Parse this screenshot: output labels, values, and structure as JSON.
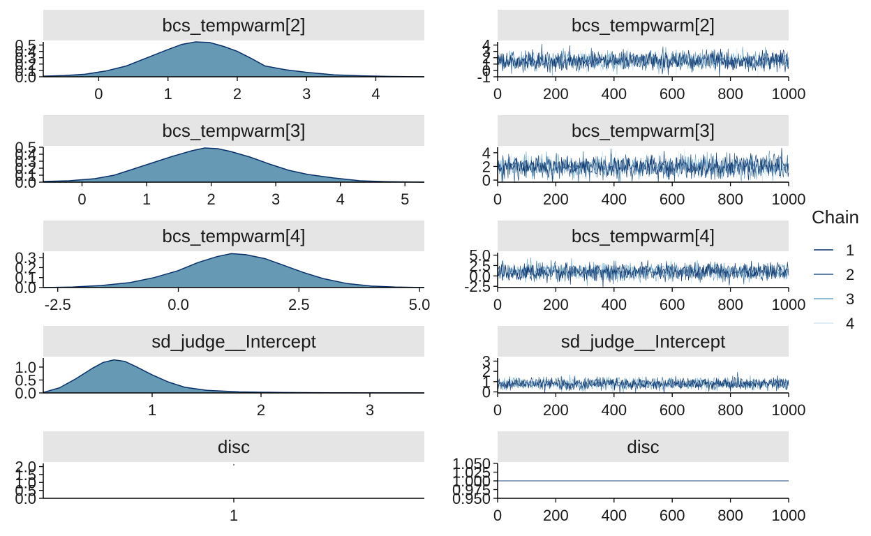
{
  "chart_data": [
    {
      "type": "area",
      "title": "bcs_tempwarm[2]",
      "x_ticks": [
        "0",
        "1",
        "2",
        "3",
        "4"
      ],
      "y_ticks": [
        "0.0",
        "0.1",
        "0.2",
        "0.3",
        "0.4",
        "0.5"
      ],
      "xlim": [
        -0.8,
        4.7
      ],
      "ylim": [
        0,
        0.55
      ],
      "density": {
        "x": [
          -0.8,
          -0.5,
          -0.2,
          0.1,
          0.4,
          0.7,
          1.0,
          1.2,
          1.4,
          1.6,
          1.8,
          2.0,
          2.2,
          2.4,
          2.7,
          3.0,
          3.4,
          3.8,
          4.2,
          4.7
        ],
        "y": [
          0.01,
          0.02,
          0.04,
          0.09,
          0.17,
          0.3,
          0.43,
          0.51,
          0.55,
          0.54,
          0.48,
          0.4,
          0.29,
          0.17,
          0.11,
          0.07,
          0.03,
          0.015,
          0.005,
          0.0
        ]
      }
    },
    {
      "type": "line",
      "title": "bcs_tempwarm[2]",
      "x_ticks": [
        "0",
        "200",
        "400",
        "600",
        "800",
        "1000"
      ],
      "y_ticks": [
        "-1",
        "0",
        "1",
        "2",
        "3",
        "4"
      ],
      "xlim": [
        0,
        1000
      ],
      "ylim": [
        -1,
        4.5
      ],
      "trace": {
        "center": 1.5,
        "spread": 0.75,
        "n": 1000
      }
    },
    {
      "type": "area",
      "title": "bcs_tempwarm[3]",
      "x_ticks": [
        "0",
        "1",
        "2",
        "3",
        "4",
        "5"
      ],
      "y_ticks": [
        "0.0",
        "0.1",
        "0.2",
        "0.3",
        "0.4",
        "0.5"
      ],
      "xlim": [
        -0.6,
        5.3
      ],
      "ylim": [
        0,
        0.5
      ],
      "density": {
        "x": [
          -0.6,
          -0.2,
          0.2,
          0.5,
          0.8,
          1.1,
          1.4,
          1.7,
          1.9,
          2.1,
          2.3,
          2.6,
          2.9,
          3.2,
          3.5,
          3.9,
          4.3,
          4.7,
          5.3
        ],
        "y": [
          0.01,
          0.02,
          0.05,
          0.1,
          0.19,
          0.28,
          0.37,
          0.45,
          0.49,
          0.48,
          0.44,
          0.36,
          0.26,
          0.17,
          0.11,
          0.06,
          0.02,
          0.008,
          0.0
        ]
      }
    },
    {
      "type": "line",
      "title": "bcs_tempwarm[3]",
      "x_ticks": [
        "0",
        "200",
        "400",
        "600",
        "800",
        "1000"
      ],
      "y_ticks": [
        "0",
        "2",
        "4"
      ],
      "xlim": [
        0,
        1000
      ],
      "ylim": [
        -0.3,
        4.8
      ],
      "trace": {
        "center": 1.95,
        "spread": 0.85,
        "n": 1000
      }
    },
    {
      "type": "area",
      "title": "bcs_tempwarm[4]",
      "x_ticks": [
        "-2.5",
        "0.0",
        "2.5",
        "5.0"
      ],
      "y_ticks": [
        "0.0",
        "0.1",
        "0.2",
        "0.3"
      ],
      "xlim": [
        -2.8,
        5.1
      ],
      "ylim": [
        0,
        0.35
      ],
      "density": {
        "x": [
          -2.8,
          -2.2,
          -1.6,
          -1.0,
          -0.5,
          0.0,
          0.4,
          0.8,
          1.1,
          1.4,
          1.8,
          2.2,
          2.6,
          3.0,
          3.5,
          4.0,
          4.5,
          5.1
        ],
        "y": [
          0.0,
          0.005,
          0.02,
          0.05,
          0.1,
          0.17,
          0.25,
          0.31,
          0.34,
          0.33,
          0.29,
          0.22,
          0.15,
          0.09,
          0.04,
          0.015,
          0.005,
          0.0
        ]
      }
    },
    {
      "type": "line",
      "title": "bcs_tempwarm[4]",
      "x_ticks": [
        "0",
        "200",
        "400",
        "600",
        "800",
        "1000"
      ],
      "y_ticks": [
        "-2.5",
        "0.0",
        "2.5",
        "5.0"
      ],
      "xlim": [
        0,
        1000
      ],
      "ylim": [
        -2.8,
        5.6
      ],
      "trace": {
        "center": 1.0,
        "spread": 1.1,
        "n": 1000
      }
    },
    {
      "type": "area",
      "title": "sd_judge__Intercept",
      "x_ticks": [
        "1",
        "2",
        "3"
      ],
      "y_ticks": [
        "0.0",
        "0.5",
        "1.0"
      ],
      "xlim": [
        0.0,
        3.5
      ],
      "ylim": [
        0,
        1.35
      ],
      "density": {
        "x": [
          0.0,
          0.15,
          0.3,
          0.45,
          0.55,
          0.65,
          0.75,
          0.85,
          1.0,
          1.15,
          1.3,
          1.5,
          1.8,
          2.2,
          2.6,
          3.0,
          3.5
        ],
        "y": [
          0.02,
          0.2,
          0.55,
          0.95,
          1.18,
          1.28,
          1.22,
          1.02,
          0.7,
          0.42,
          0.22,
          0.1,
          0.04,
          0.015,
          0.008,
          0.004,
          0.0
        ]
      }
    },
    {
      "type": "line",
      "title": "sd_judge__Intercept",
      "x_ticks": [
        "0",
        "200",
        "400",
        "600",
        "800",
        "1000"
      ],
      "y_ticks": [
        "0",
        "1",
        "2",
        "3"
      ],
      "xlim": [
        0,
        1000
      ],
      "ylim": [
        -0.1,
        3.3
      ],
      "trace": {
        "center": 0.8,
        "spread": 0.3,
        "n": 1000
      }
    },
    {
      "type": "area",
      "title": "disc",
      "x_ticks": [
        "1"
      ],
      "y_ticks": [
        "0.0",
        "0.5",
        "1.0",
        "1.5",
        "2.0"
      ],
      "xlim": [
        0.0,
        2.0
      ],
      "ylim": [
        0,
        2.2
      ],
      "density": {
        "x": [],
        "y": []
      }
    },
    {
      "type": "line",
      "title": "disc",
      "x_ticks": [
        "0",
        "200",
        "400",
        "600",
        "800",
        "1000"
      ],
      "y_ticks": [
        "0.950",
        "0.975",
        "1.000",
        "1.025",
        "1.050"
      ],
      "xlim": [
        0,
        1000
      ],
      "ylim": [
        0.95,
        1.05
      ],
      "trace": {
        "center": 1.0,
        "spread": 0.0,
        "n": 1000
      }
    }
  ],
  "legend": {
    "title": "Chain",
    "items": [
      {
        "label": "1",
        "color": "#08306b"
      },
      {
        "label": "2",
        "color": "#2b5c8a"
      },
      {
        "label": "3",
        "color": "#6fa8c9"
      },
      {
        "label": "4",
        "color": "#d7e8f2"
      }
    ]
  },
  "colors": {
    "density_fill": "#6699b3",
    "density_line": "#08306b",
    "strip": "#e5e5e5"
  }
}
